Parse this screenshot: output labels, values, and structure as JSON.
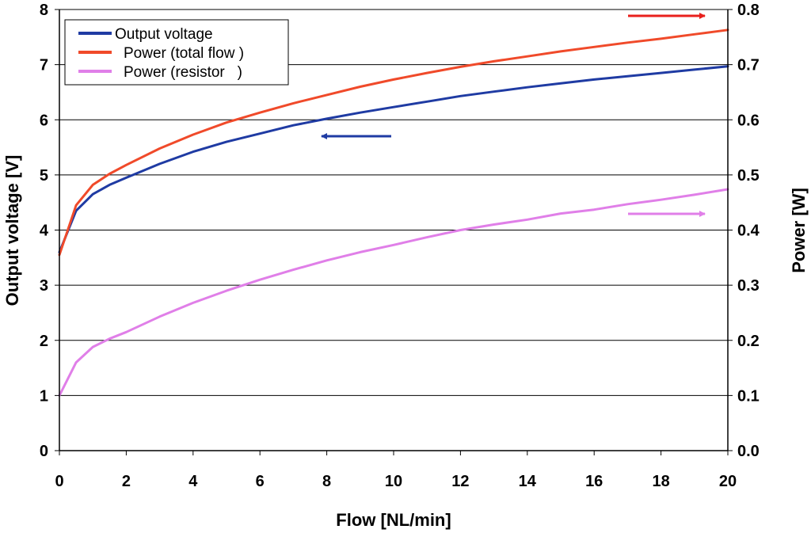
{
  "chart_data": {
    "type": "line",
    "title": "",
    "xlabel": "Flow [NL/min]",
    "ylabel": "Output voltage [V]",
    "y2label": "Power [W]",
    "xlim": [
      0,
      20
    ],
    "ylim": [
      0,
      8
    ],
    "y2lim": [
      0,
      0.8
    ],
    "x_ticks": [
      "0",
      "2",
      "4",
      "6",
      "8",
      "10",
      "12",
      "14",
      "16",
      "18",
      "20"
    ],
    "y_ticks": [
      "0",
      "1",
      "2",
      "3",
      "4",
      "5",
      "6",
      "7",
      "8"
    ],
    "y2_ticks": [
      "0.0",
      "0.1",
      "0.2",
      "0.3",
      "0.4",
      "0.5",
      "0.6",
      "0.7",
      "0.8"
    ],
    "grid": "horizontal",
    "legend_position": "top-left",
    "series": [
      {
        "name": "Output voltage",
        "axis": "left",
        "color": "#1f3ba3",
        "x": [
          0,
          0.5,
          1,
          1.5,
          2,
          3,
          4,
          5,
          6,
          7,
          8,
          9,
          10,
          11,
          12,
          13,
          14,
          15,
          16,
          17,
          18,
          19,
          20
        ],
        "values": [
          3.6,
          4.35,
          4.65,
          4.82,
          4.95,
          5.2,
          5.42,
          5.6,
          5.75,
          5.9,
          6.02,
          6.13,
          6.23,
          6.33,
          6.43,
          6.51,
          6.59,
          6.66,
          6.73,
          6.79,
          6.85,
          6.91,
          6.97
        ]
      },
      {
        "name": "Power (total flow )",
        "axis": "right",
        "color": "#f04a2a",
        "x": [
          0,
          0.5,
          1,
          1.5,
          2,
          3,
          4,
          5,
          6,
          7,
          8,
          9,
          10,
          11,
          12,
          13,
          14,
          15,
          16,
          17,
          18,
          19,
          20
        ],
        "values": [
          0.355,
          0.445,
          0.482,
          0.502,
          0.518,
          0.548,
          0.573,
          0.595,
          0.613,
          0.63,
          0.645,
          0.66,
          0.673,
          0.685,
          0.696,
          0.706,
          0.715,
          0.724,
          0.732,
          0.74,
          0.747,
          0.755,
          0.763
        ]
      },
      {
        "name": "Power (resistor   )",
        "axis": "right",
        "color": "#e07fe8",
        "x": [
          0,
          0.5,
          1,
          1.5,
          2,
          3,
          4,
          5,
          6,
          7,
          8,
          9,
          10,
          11,
          12,
          13,
          14,
          15,
          16,
          17,
          18,
          19,
          20
        ],
        "values": [
          0.1,
          0.16,
          0.188,
          0.203,
          0.215,
          0.243,
          0.268,
          0.29,
          0.31,
          0.328,
          0.345,
          0.36,
          0.373,
          0.387,
          0.4,
          0.41,
          0.419,
          0.43,
          0.437,
          0.447,
          0.455,
          0.464,
          0.474
        ]
      }
    ],
    "annotations": [
      {
        "type": "arrow",
        "direction": "right",
        "color": "#e8201c",
        "points_to": "right-axis"
      },
      {
        "type": "arrow",
        "direction": "left",
        "color": "#1f3ba3",
        "points_to": "left-axis"
      },
      {
        "type": "arrow",
        "direction": "right",
        "color": "#e07fe8",
        "points_to": "right-axis"
      }
    ]
  }
}
